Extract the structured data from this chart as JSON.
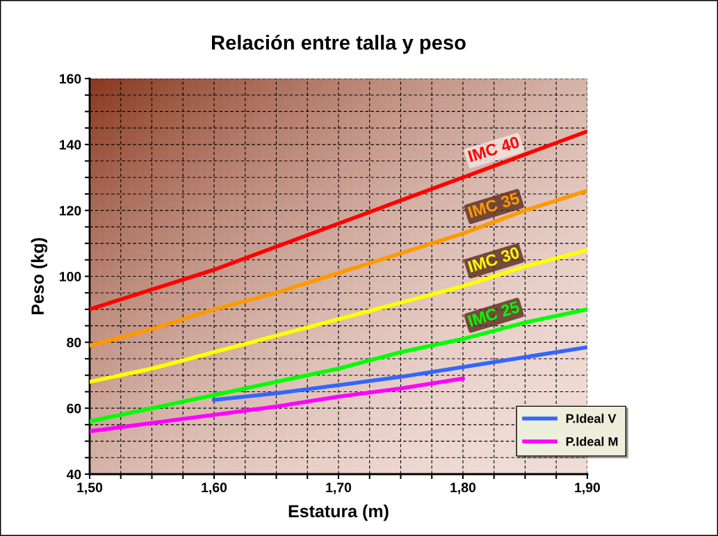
{
  "chart_data": {
    "type": "line",
    "title": "Relación entre talla y peso",
    "xlabel": "Estatura (m)",
    "ylabel": "Peso (kg)",
    "x": [
      1.5,
      1.55,
      1.6,
      1.65,
      1.7,
      1.75,
      1.8,
      1.85,
      1.9
    ],
    "series": [
      {
        "name": "IMC 40",
        "color": "#ff0000",
        "values": [
          90,
          96,
          102,
          109,
          116,
          123,
          130,
          137,
          144
        ]
      },
      {
        "name": "IMC 35",
        "color": "#ff9900",
        "values": [
          79,
          84,
          90,
          95,
          101,
          107,
          113,
          120,
          126
        ]
      },
      {
        "name": "IMC 30",
        "color": "#ffff00",
        "values": [
          68,
          72,
          77,
          82,
          87,
          92,
          97,
          103,
          108
        ]
      },
      {
        "name": "IMC 25",
        "color": "#00ff00",
        "values": [
          56,
          60,
          64,
          68,
          72,
          77,
          81,
          86,
          90
        ]
      },
      {
        "name": "P.Ideal V",
        "color": "#3366ff",
        "x": [
          1.6,
          1.65,
          1.7,
          1.75,
          1.8,
          1.85,
          1.9
        ],
        "values": [
          62.5,
          64.5,
          67,
          69.5,
          72.5,
          75.5,
          78.5
        ]
      },
      {
        "name": "P.Ideal M",
        "color": "#ff00ff",
        "x": [
          1.5,
          1.55,
          1.6,
          1.65,
          1.7,
          1.75,
          1.8
        ],
        "values": [
          53,
          55.5,
          58,
          60.5,
          63.5,
          66,
          69
        ]
      }
    ],
    "xlim": [
      1.5,
      1.9
    ],
    "xticks": [
      {
        "value": 1.5,
        "label": "1,50"
      },
      {
        "value": 1.525,
        "label": null
      },
      {
        "value": 1.55,
        "label": null
      },
      {
        "value": 1.575,
        "label": null
      },
      {
        "value": 1.6,
        "label": "1,60"
      },
      {
        "value": 1.625,
        "label": null
      },
      {
        "value": 1.65,
        "label": null
      },
      {
        "value": 1.675,
        "label": null
      },
      {
        "value": 1.7,
        "label": "1,70"
      },
      {
        "value": 1.725,
        "label": null
      },
      {
        "value": 1.75,
        "label": null
      },
      {
        "value": 1.775,
        "label": null
      },
      {
        "value": 1.8,
        "label": "1,80"
      },
      {
        "value": 1.825,
        "label": null
      },
      {
        "value": 1.85,
        "label": null
      },
      {
        "value": 1.875,
        "label": null
      },
      {
        "value": 1.9,
        "label": "1,90"
      }
    ],
    "ylim": [
      40,
      160
    ],
    "yticks": [
      40,
      {
        "value": 45,
        "label": null
      },
      {
        "value": 50,
        "label": null
      },
      {
        "value": 55,
        "label": null
      },
      60,
      {
        "value": 65,
        "label": null
      },
      {
        "value": 70,
        "label": null
      },
      {
        "value": 75,
        "label": null
      },
      80,
      {
        "value": 85,
        "label": null
      },
      {
        "value": 90,
        "label": null
      },
      {
        "value": 95,
        "label": null
      },
      100,
      {
        "value": 105,
        "label": null
      },
      {
        "value": 110,
        "label": null
      },
      {
        "value": 115,
        "label": null
      },
      120,
      {
        "value": 125,
        "label": null
      },
      {
        "value": 130,
        "label": null
      },
      {
        "value": 135,
        "label": null
      },
      140,
      {
        "value": 145,
        "label": null
      },
      {
        "value": 150,
        "label": null
      },
      {
        "value": 155,
        "label": null
      },
      160
    ],
    "grid": true,
    "legend": "bottom right",
    "marker": "none",
    "line_style": "solid"
  }
}
